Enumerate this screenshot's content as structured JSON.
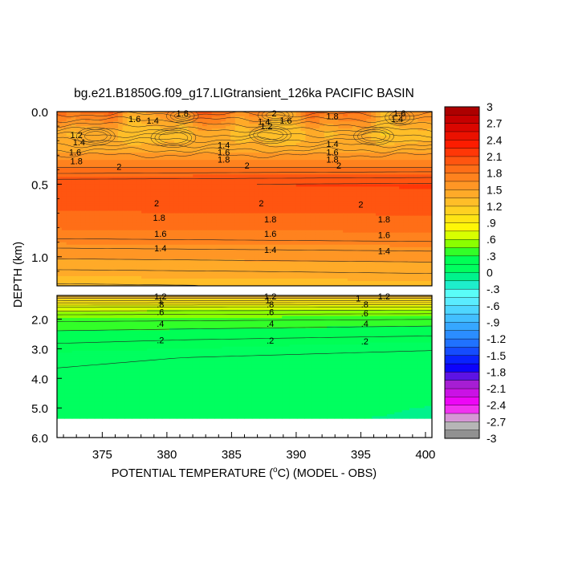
{
  "chart_data": {
    "type": "heatmap",
    "title": "bg.e21.B1850G.f09_g17.LIGtransient_126ka PACIFIC BASIN",
    "xlabel_prefix": "POTENTIAL TEMPERATURE (",
    "xlabel_unit": "o",
    "xlabel_suffix": "C) (MODEL - OBS)",
    "ylabel": "DEPTH (km)",
    "x_range": [
      371.5,
      400.5
    ],
    "x_ticks": [
      {
        "value": 375,
        "label": "375"
      },
      {
        "value": 380,
        "label": "380"
      },
      {
        "value": 385,
        "label": "385"
      },
      {
        "value": 390,
        "label": "390"
      },
      {
        "value": 395,
        "label": "395"
      },
      {
        "value": 400,
        "label": "400"
      }
    ],
    "upper_panel": {
      "depth_range_km": [
        0.0,
        1.2
      ],
      "y_ticks": [
        {
          "value": 0.0,
          "label": "0.0"
        },
        {
          "value": 0.5,
          "label": "0.5"
        },
        {
          "value": 1.0,
          "label": "1.0"
        }
      ]
    },
    "lower_panel": {
      "depth_range_km": [
        1.2,
        6.0
      ],
      "data_bottom_km": 5.35,
      "y_ticks": [
        {
          "value": 2.0,
          "label": "2.0"
        },
        {
          "value": 3.0,
          "label": "3.0"
        },
        {
          "value": 4.0,
          "label": "4.0"
        },
        {
          "value": 5.0,
          "label": "5.0"
        },
        {
          "value": 6.0,
          "label": "6.0"
        }
      ]
    },
    "depth_profile": [
      {
        "depth": 0.0,
        "value": 1.7
      },
      {
        "depth": 0.15,
        "value": 1.3
      },
      {
        "depth": 0.25,
        "value": 1.4
      },
      {
        "depth": 0.32,
        "value": 1.6
      },
      {
        "depth": 0.4,
        "value": 1.85
      },
      {
        "depth": 0.5,
        "value": 2.1
      },
      {
        "depth": 0.6,
        "value": 2.05
      },
      {
        "depth": 0.7,
        "value": 1.95
      },
      {
        "depth": 0.82,
        "value": 1.8
      },
      {
        "depth": 0.95,
        "value": 1.6
      },
      {
        "depth": 1.1,
        "value": 1.4
      },
      {
        "depth": 1.2,
        "value": 1.3
      },
      {
        "depth": 1.3,
        "value": 1.1
      },
      {
        "depth": 1.45,
        "value": 0.9
      },
      {
        "depth": 1.6,
        "value": 0.7
      },
      {
        "depth": 1.85,
        "value": 0.5
      },
      {
        "depth": 2.2,
        "value": 0.35
      },
      {
        "depth": 2.7,
        "value": 0.22
      },
      {
        "depth": 3.3,
        "value": 0.12
      },
      {
        "depth": 4.0,
        "value": 0.08
      },
      {
        "depth": 5.35,
        "value": 0.05
      }
    ],
    "contour_labels": [
      {
        "x": 377.5,
        "depth": 0.05,
        "text": "1.6"
      },
      {
        "x": 378.9,
        "depth": 0.06,
        "text": "1.4"
      },
      {
        "x": 381.2,
        "depth": 0.01,
        "text": "1.8"
      },
      {
        "x": 388.3,
        "depth": 0.01,
        "text": "2"
      },
      {
        "x": 387.5,
        "depth": 0.07,
        "text": "1.4"
      },
      {
        "x": 389.2,
        "depth": 0.06,
        "text": "1.6"
      },
      {
        "x": 387.7,
        "depth": 0.1,
        "text": "1.2"
      },
      {
        "x": 392.8,
        "depth": 0.03,
        "text": "1.8"
      },
      {
        "x": 397.8,
        "depth": 0.05,
        "text": "1.4"
      },
      {
        "x": 398.0,
        "depth": 0.01,
        "text": "1.6"
      },
      {
        "x": 373.0,
        "depth": 0.16,
        "text": "1.2"
      },
      {
        "x": 373.2,
        "depth": 0.21,
        "text": "1.4"
      },
      {
        "x": 372.9,
        "depth": 0.28,
        "text": "1.6"
      },
      {
        "x": 373.0,
        "depth": 0.34,
        "text": "1.8"
      },
      {
        "x": 376.3,
        "depth": 0.38,
        "text": "2"
      },
      {
        "x": 384.4,
        "depth": 0.23,
        "text": "1.4"
      },
      {
        "x": 384.4,
        "depth": 0.28,
        "text": "1.6"
      },
      {
        "x": 384.4,
        "depth": 0.33,
        "text": "1.8"
      },
      {
        "x": 386.2,
        "depth": 0.37,
        "text": "2"
      },
      {
        "x": 392.8,
        "depth": 0.22,
        "text": "1.4"
      },
      {
        "x": 392.8,
        "depth": 0.28,
        "text": "1.6"
      },
      {
        "x": 392.8,
        "depth": 0.33,
        "text": "1.8"
      },
      {
        "x": 393.3,
        "depth": 0.37,
        "text": "2"
      },
      {
        "x": 379.2,
        "depth": 0.63,
        "text": "2"
      },
      {
        "x": 387.3,
        "depth": 0.63,
        "text": "2"
      },
      {
        "x": 395.0,
        "depth": 0.64,
        "text": "2"
      },
      {
        "x": 379.4,
        "depth": 0.73,
        "text": "1.8"
      },
      {
        "x": 388.0,
        "depth": 0.74,
        "text": "1.8"
      },
      {
        "x": 396.8,
        "depth": 0.74,
        "text": "1.8"
      },
      {
        "x": 379.5,
        "depth": 0.84,
        "text": "1.6"
      },
      {
        "x": 388.0,
        "depth": 0.84,
        "text": "1.6"
      },
      {
        "x": 396.8,
        "depth": 0.85,
        "text": "1.6"
      },
      {
        "x": 379.5,
        "depth": 0.94,
        "text": "1.4"
      },
      {
        "x": 388.0,
        "depth": 0.95,
        "text": "1.4"
      },
      {
        "x": 396.8,
        "depth": 0.96,
        "text": "1.4"
      },
      {
        "x": 379.5,
        "depth": 1.23,
        "text": "1.2"
      },
      {
        "x": 388.0,
        "depth": 1.23,
        "text": "1.2"
      },
      {
        "x": 396.8,
        "depth": 1.23,
        "text": "1.2"
      },
      {
        "x": 379.5,
        "depth": 1.36,
        "text": "1"
      },
      {
        "x": 387.8,
        "depth": 1.36,
        "text": "1"
      },
      {
        "x": 394.8,
        "depth": 1.3,
        "text": "1"
      },
      {
        "x": 379.5,
        "depth": 1.5,
        "text": ".8"
      },
      {
        "x": 388.0,
        "depth": 1.5,
        "text": ".8"
      },
      {
        "x": 395.3,
        "depth": 1.5,
        "text": ".8"
      },
      {
        "x": 379.5,
        "depth": 1.75,
        "text": ".6"
      },
      {
        "x": 388.0,
        "depth": 1.75,
        "text": ".6"
      },
      {
        "x": 395.3,
        "depth": 1.8,
        "text": ".6"
      },
      {
        "x": 379.5,
        "depth": 2.15,
        "text": ".4"
      },
      {
        "x": 388.0,
        "depth": 2.15,
        "text": ".4"
      },
      {
        "x": 395.3,
        "depth": 2.15,
        "text": ".4"
      },
      {
        "x": 379.5,
        "depth": 2.7,
        "text": ".2"
      },
      {
        "x": 388.0,
        "depth": 2.72,
        "text": ".2"
      },
      {
        "x": 395.3,
        "depth": 2.75,
        "text": ".2"
      }
    ],
    "colorbar": {
      "min": -3.0,
      "max": 3.0,
      "step": 0.15,
      "labels": [
        "3",
        "2.7",
        "2.4",
        "2.1",
        "1.8",
        "1.5",
        "1.2",
        ".9",
        ".6",
        ".3",
        "0",
        "-.3",
        "-.6",
        "-.9",
        "-1.2",
        "-1.5",
        "-1.8",
        "-2.1",
        "-2.4",
        "-2.7",
        "-3"
      ],
      "color_stops": [
        {
          "value": -3.0,
          "color": "#7f7f7f"
        },
        {
          "value": -2.7,
          "color": "#c8c8c8"
        },
        {
          "value": -2.4,
          "color": "#ff00ff"
        },
        {
          "value": -2.0,
          "color": "#a020d0"
        },
        {
          "value": -1.7,
          "color": "#0000ff"
        },
        {
          "value": -1.3,
          "color": "#1e6eff"
        },
        {
          "value": -0.9,
          "color": "#3cb4ff"
        },
        {
          "value": -0.4,
          "color": "#64ffff"
        },
        {
          "value": -0.15,
          "color": "#00e6b4"
        },
        {
          "value": 0.0,
          "color": "#00ff64"
        },
        {
          "value": 0.3,
          "color": "#00ff50"
        },
        {
          "value": 0.45,
          "color": "#64ff00"
        },
        {
          "value": 0.75,
          "color": "#ffff00"
        },
        {
          "value": 1.2,
          "color": "#ffc828"
        },
        {
          "value": 1.5,
          "color": "#ffa028"
        },
        {
          "value": 1.95,
          "color": "#ff6414"
        },
        {
          "value": 2.3,
          "color": "#ff1e00"
        },
        {
          "value": 2.7,
          "color": "#d20000"
        },
        {
          "value": 3.0,
          "color": "#a00000"
        }
      ]
    }
  }
}
